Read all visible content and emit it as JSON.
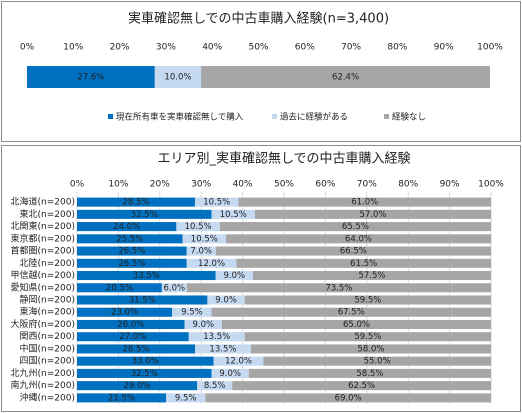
{
  "chart_data": [
    {
      "type": "stacked-bar-horizontal",
      "title": "実車確認無しでの中古車購入経験(n=3,400)",
      "categories": [
        null
      ],
      "series": [
        {
          "name": "現在所有車を実車確認無しで購入",
          "color": "#0070c0",
          "values": [
            27.6
          ],
          "value_labels": [
            "27.6%"
          ]
        },
        {
          "name": "過去に経験がある",
          "color": "#c5d9f1",
          "values": [
            10.0
          ],
          "value_labels": [
            "10.0%"
          ]
        },
        {
          "name": "経験なし",
          "color": "#a6a6a6",
          "values": [
            62.4
          ],
          "value_labels": [
            "62.4%"
          ]
        }
      ],
      "xlim": [
        0,
        100
      ],
      "xticks": [
        {
          "value": 0,
          "label": "0%"
        },
        {
          "value": 10,
          "label": "10%"
        },
        {
          "value": 20,
          "label": "20%"
        },
        {
          "value": 30,
          "label": "30%"
        },
        {
          "value": 40,
          "label": "40%"
        },
        {
          "value": 50,
          "label": "50%"
        },
        {
          "value": 60,
          "label": "60%"
        },
        {
          "value": 70,
          "label": "70%"
        },
        {
          "value": 80,
          "label": "80%"
        },
        {
          "value": 90,
          "label": "90%"
        },
        {
          "value": 100,
          "label": "100%"
        }
      ],
      "grid": false,
      "legend": "bottom"
    },
    {
      "type": "stacked-bar-horizontal",
      "title": "エリア別_実車確認無しでの中古車購入経験",
      "categories": [
        "北海道(n=200)",
        "東北(n=200)",
        "北関東(n=200)",
        "東京都(n=200)",
        "首都圏(n=200)",
        "北陸(n=200)",
        "甲信越(n=200)",
        "愛知県(n=200)",
        "静岡(n=200)",
        "東海(n=200)",
        "大阪府(n=200)",
        "関西(n=200)",
        "中国(n=200)",
        "四国(n=200)",
        "北九州(n=200)",
        "南九州(n=200)",
        "沖縄(n=200)"
      ],
      "series": [
        {
          "color": "#0070c0",
          "values": [
            28.5,
            32.5,
            24.0,
            25.5,
            26.5,
            26.5,
            33.5,
            20.5,
            31.5,
            23.0,
            26.0,
            27.0,
            28.5,
            33.0,
            32.5,
            29.0,
            21.5
          ],
          "value_labels": [
            "28.5%",
            "32.5%",
            "24.0%",
            "25.5%",
            "26.5%",
            "26.5%",
            "33.5%",
            "20.5%",
            "31.5%",
            "23.0%",
            "26.0%",
            "27.0%",
            "28.5%",
            "33.0%",
            "32.5%",
            "29.0%",
            "21.5%"
          ]
        },
        {
          "color": "#c5d9f1",
          "values": [
            10.5,
            10.5,
            10.5,
            10.5,
            7.0,
            12.0,
            9.0,
            6.0,
            9.0,
            9.5,
            9.0,
            13.5,
            13.5,
            12.0,
            9.0,
            8.5,
            9.5
          ],
          "value_labels": [
            "10.5%",
            "10.5%",
            "10.5%",
            "10.5%",
            "7.0%",
            "12.0%",
            "9.0%",
            "6.0%",
            "9.0%",
            "9.5%",
            "9.0%",
            "13.5%",
            "13.5%",
            "12.0%",
            "9.0%",
            "8.5%",
            "9.5%"
          ]
        },
        {
          "color": "#a6a6a6",
          "values": [
            61.0,
            57.0,
            65.5,
            64.0,
            66.5,
            61.5,
            57.5,
            73.5,
            59.5,
            67.5,
            65.0,
            59.5,
            58.0,
            55.0,
            58.5,
            62.5,
            69.0
          ],
          "value_labels": [
            "61.0%",
            "57.0%",
            "65.5%",
            "64.0%",
            "66.5%",
            "61.5%",
            "57.5%",
            "73.5%",
            "59.5%",
            "67.5%",
            "65.0%",
            "59.5%",
            "58.0%",
            "55.0%",
            "58.5%",
            "62.5%",
            "69.0%"
          ]
        }
      ],
      "xlim": [
        0,
        100
      ],
      "xticks": [
        {
          "value": 0,
          "label": "0%"
        },
        {
          "value": 10,
          "label": "10%"
        },
        {
          "value": 20,
          "label": "20%"
        },
        {
          "value": 30,
          "label": "30%"
        },
        {
          "value": 40,
          "label": "40%"
        },
        {
          "value": 50,
          "label": "50%"
        },
        {
          "value": 60,
          "label": "60%"
        },
        {
          "value": 70,
          "label": "70%"
        },
        {
          "value": 80,
          "label": "80%"
        },
        {
          "value": 90,
          "label": "90%"
        },
        {
          "value": 100,
          "label": "100%"
        }
      ],
      "grid": true
    }
  ]
}
